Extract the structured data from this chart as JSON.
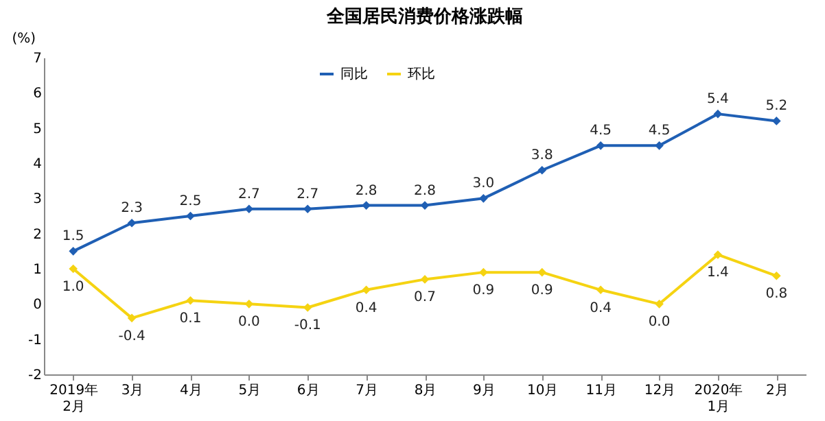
{
  "chart_data": {
    "type": "line",
    "title": "全国居民消费价格涨跌幅",
    "ylabel": "(%)",
    "categories": [
      "2019年\n2月",
      "3月",
      "4月",
      "5月",
      "6月",
      "7月",
      "8月",
      "9月",
      "10月",
      "11月",
      "12月",
      "2020年\n1月",
      "2月"
    ],
    "series": [
      {
        "name": "同比",
        "color": "#1f5fb4",
        "values": [
          1.5,
          2.3,
          2.5,
          2.7,
          2.7,
          2.8,
          2.8,
          3.0,
          3.8,
          4.5,
          4.5,
          5.4,
          5.2
        ],
        "value_labels": [
          "1.5",
          "2.3",
          "2.5",
          "2.7",
          "2.7",
          "2.8",
          "2.8",
          "3.0",
          "3.8",
          "4.5",
          "4.5",
          "5.4",
          "5.2"
        ]
      },
      {
        "name": "环比",
        "color": "#f5d312",
        "values": [
          1.0,
          -0.4,
          0.1,
          0.0,
          -0.1,
          0.4,
          0.7,
          0.9,
          0.9,
          0.4,
          0.0,
          1.4,
          0.8
        ],
        "value_labels": [
          "1.0",
          "-0.4",
          "0.1",
          "0.0",
          "-0.1",
          "0.4",
          "0.7",
          "0.9",
          "0.9",
          "0.4",
          "0.0",
          "1.4",
          "0.8"
        ]
      }
    ],
    "ylim": [
      -2,
      7
    ],
    "yticks": [
      -2,
      -1,
      0,
      1,
      2,
      3,
      4,
      5,
      6,
      7
    ],
    "grid": false,
    "legend": "top",
    "marker": "diamond",
    "line_style": "solid"
  }
}
